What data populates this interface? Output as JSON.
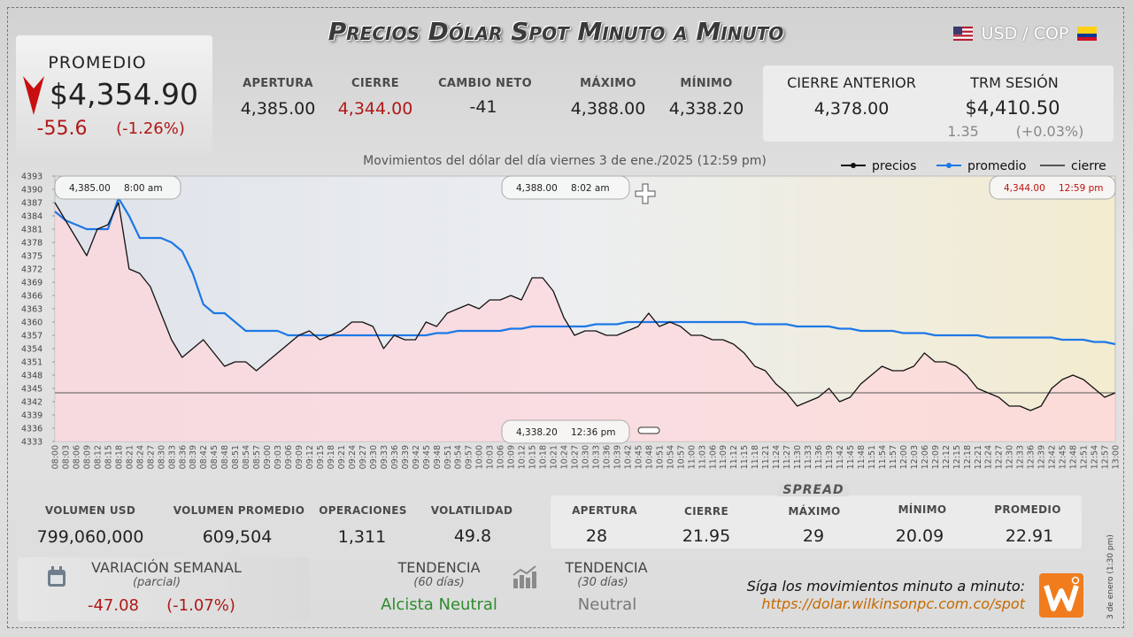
{
  "header": {
    "title": "Precios Dólar Spot Minuto a Minuto",
    "currency_pair": "USD / COP"
  },
  "promedio": {
    "label": "PROMEDIO",
    "value": "$4,354.90",
    "change": "-55.6",
    "change_pct": "(-1.26%)"
  },
  "session": [
    {
      "label": "APERTURA",
      "value": "4,385.00"
    },
    {
      "label": "CIERRE",
      "value": "4,344.00"
    },
    {
      "label": "CAMBIO NETO",
      "value": "-41"
    },
    {
      "label": "MÁXIMO",
      "value": "4,388.00"
    },
    {
      "label": "MÍNIMO",
      "value": "4,338.20"
    }
  ],
  "previous": {
    "cierre_anterior_label": "CIERRE ANTERIOR",
    "cierre_anterior": "4,378.00",
    "trm_label": "TRM SESIÓN",
    "trm": "$4,410.50",
    "trm_change": "1.35",
    "trm_change_pct": "(+0.03%)"
  },
  "chart_data": {
    "type": "line",
    "title": "Movimientos del dólar del día viernes 3 de ene./2025 (12:59 pm)",
    "categories": [
      "08:00",
      "08:03",
      "08:06",
      "08:09",
      "08:12",
      "08:15",
      "08:18",
      "08:21",
      "08:24",
      "08:27",
      "08:30",
      "08:33",
      "08:36",
      "08:39",
      "08:42",
      "08:45",
      "08:48",
      "08:51",
      "08:54",
      "08:57",
      "09:00",
      "09:03",
      "09:06",
      "09:09",
      "09:12",
      "09:15",
      "09:18",
      "09:21",
      "09:24",
      "09:27",
      "09:30",
      "09:33",
      "09:36",
      "09:39",
      "09:42",
      "09:45",
      "09:48",
      "09:51",
      "09:54",
      "09:57",
      "10:00",
      "10:03",
      "10:06",
      "10:09",
      "10:12",
      "10:15",
      "10:18",
      "10:21",
      "10:24",
      "10:27",
      "10:30",
      "10:33",
      "10:36",
      "10:39",
      "10:42",
      "10:45",
      "10:48",
      "10:51",
      "10:54",
      "10:57",
      "11:00",
      "11:03",
      "11:06",
      "11:09",
      "11:12",
      "11:15",
      "11:18",
      "11:21",
      "11:24",
      "11:27",
      "11:30",
      "11:33",
      "11:36",
      "11:39",
      "11:42",
      "11:45",
      "11:48",
      "11:51",
      "11:54",
      "11:57",
      "12:00",
      "12:03",
      "12:06",
      "12:09",
      "12:12",
      "12:15",
      "12:18",
      "12:21",
      "12:24",
      "12:27",
      "12:30",
      "12:33",
      "12:36",
      "12:39",
      "12:42",
      "12:45",
      "12:48",
      "12:51",
      "12:54",
      "12:57",
      "13:00"
    ],
    "series": [
      {
        "name": "precios",
        "color": "#111111",
        "values": [
          4387,
          4383,
          4379,
          4375,
          4381,
          4382,
          4387,
          4372,
          4371,
          4368,
          4362,
          4356,
          4352,
          4354,
          4356,
          4353,
          4350,
          4351,
          4351,
          4349,
          4351,
          4353,
          4355,
          4357,
          4358,
          4356,
          4357,
          4358,
          4360,
          4360,
          4359,
          4354,
          4357,
          4356,
          4356,
          4360,
          4359,
          4362,
          4363,
          4364,
          4363,
          4365,
          4365,
          4366,
          4365,
          4370,
          4370,
          4367,
          4361,
          4357,
          4358,
          4358,
          4357,
          4357,
          4358,
          4359,
          4362,
          4359,
          4360,
          4359,
          4357,
          4357,
          4356,
          4356,
          4355,
          4353,
          4350,
          4349,
          4346,
          4344,
          4341,
          4342,
          4343,
          4345,
          4342,
          4343,
          4346,
          4348,
          4350,
          4349,
          4349,
          4350,
          4353,
          4351,
          4351,
          4350,
          4348,
          4345,
          4344,
          4343,
          4341,
          4341,
          4340,
          4341,
          4345,
          4347,
          4348,
          4347,
          4345,
          4343,
          4344
        ]
      },
      {
        "name": "promedio",
        "color": "#1e78e6",
        "values": [
          4385,
          4383,
          4382,
          4381,
          4381,
          4381,
          4388,
          4384,
          4379,
          4379,
          4379,
          4378,
          4376,
          4371,
          4364,
          4362,
          4362,
          4360,
          4358,
          4358,
          4358,
          4358,
          4357,
          4357,
          4357,
          4357,
          4357,
          4357,
          4357,
          4357,
          4357,
          4357,
          4357,
          4357,
          4357,
          4357,
          4357.5,
          4357.5,
          4358,
          4358,
          4358,
          4358,
          4358,
          4358.5,
          4358.5,
          4359,
          4359,
          4359,
          4359,
          4359,
          4359,
          4359.5,
          4359.5,
          4359.5,
          4360,
          4360,
          4360,
          4360,
          4360,
          4360,
          4360,
          4360,
          4360,
          4360,
          4360,
          4360,
          4359.5,
          4359.5,
          4359.5,
          4359.5,
          4359,
          4359,
          4359,
          4359,
          4358.5,
          4358.5,
          4358,
          4358,
          4358,
          4358,
          4357.5,
          4357.5,
          4357.5,
          4357,
          4357,
          4357,
          4357,
          4357,
          4356.5,
          4356.5,
          4356.5,
          4356.5,
          4356.5,
          4356.5,
          4356.5,
          4356,
          4356,
          4356,
          4355.5,
          4355.5,
          4355
        ]
      }
    ],
    "hline": {
      "name": "cierre",
      "value": 4344,
      "color": "#555555"
    },
    "ylim": [
      4333,
      4393
    ],
    "yticks": [
      4333,
      4336,
      4339,
      4342,
      4345,
      4348,
      4351,
      4354,
      4357,
      4360,
      4363,
      4366,
      4369,
      4372,
      4375,
      4378,
      4381,
      4384,
      4387,
      4390,
      4393
    ],
    "legend": "top-right",
    "annotations": [
      {
        "text": "4,385.00",
        "time": "8:00 am"
      },
      {
        "text": "4,388.00",
        "time": "8:02 am"
      },
      {
        "text": "4,344.00",
        "time": "12:59 pm"
      },
      {
        "text": "4,338.20",
        "time": "12:36 pm"
      }
    ]
  },
  "volume_stats": [
    {
      "label": "VOLUMEN USD",
      "value": "799,060,000"
    },
    {
      "label": "VOLUMEN PROMEDIO",
      "value": "609,504"
    },
    {
      "label": "OPERACIONES",
      "value": "1,311"
    },
    {
      "label": "VOLATILIDAD",
      "value": "49.8"
    }
  ],
  "spread": {
    "title": "SPREAD",
    "items": [
      {
        "label": "APERTURA",
        "value": "28"
      },
      {
        "label": "CIERRE",
        "value": "21.95"
      },
      {
        "label": "MÁXIMO",
        "value": "29"
      },
      {
        "label": "MÍNIMO",
        "value": "20.09"
      },
      {
        "label": "PROMEDIO",
        "value": "22.91"
      }
    ]
  },
  "weekly": {
    "label": "VARIACIÓN SEMANAL",
    "sub": "(parcial)",
    "change": "-47.08",
    "change_pct": "(-1.07%)"
  },
  "trend_60": {
    "label": "TENDENCIA",
    "sub": "(60 días)",
    "value": "Alcista Neutral"
  },
  "trend_30": {
    "label": "TENDENCIA",
    "sub": "(30 días)",
    "value": "Neutral"
  },
  "footer": {
    "cta": "Síga los movimientos minuto a minuto:",
    "url": "https://dolar.wilkinsonpc.com.co/spot",
    "side_note": "3 de enero (1:30 pm)"
  }
}
